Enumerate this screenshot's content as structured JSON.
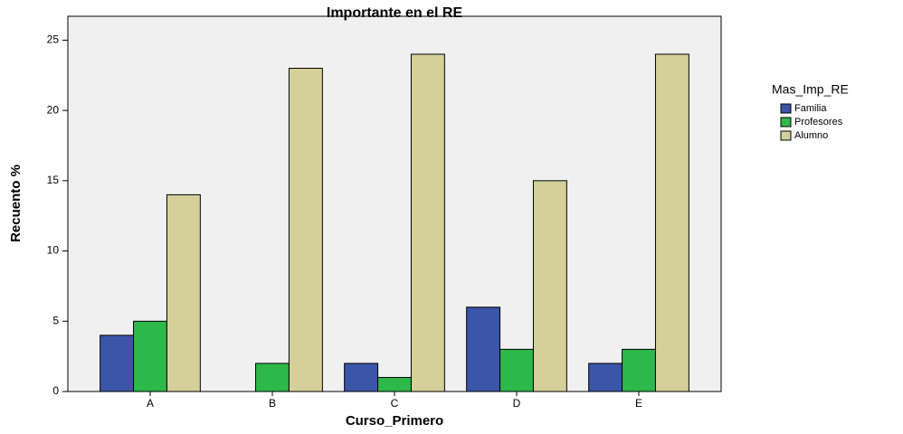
{
  "chart_data": {
    "type": "bar",
    "title": "Importante en el RE",
    "x_label": "Curso_Primero",
    "y_label": "Recuento %",
    "legend_title": "Mas_Imp_RE",
    "categories": [
      "A",
      "B",
      "C",
      "D",
      "E"
    ],
    "series": [
      {
        "name": "Familia",
        "color": "#3b55a8",
        "values": [
          4,
          0,
          2,
          6,
          2
        ]
      },
      {
        "name": "Profesores",
        "color": "#2db84a",
        "values": [
          5,
          2,
          1,
          3,
          3
        ]
      },
      {
        "name": "Alumno",
        "color": "#d5d09a",
        "values": [
          14,
          23,
          24,
          15,
          24
        ]
      }
    ],
    "ylim": [
      0,
      26.7
    ],
    "yticks": [
      0,
      5,
      10,
      15,
      20,
      25
    ],
    "legend": "right"
  }
}
